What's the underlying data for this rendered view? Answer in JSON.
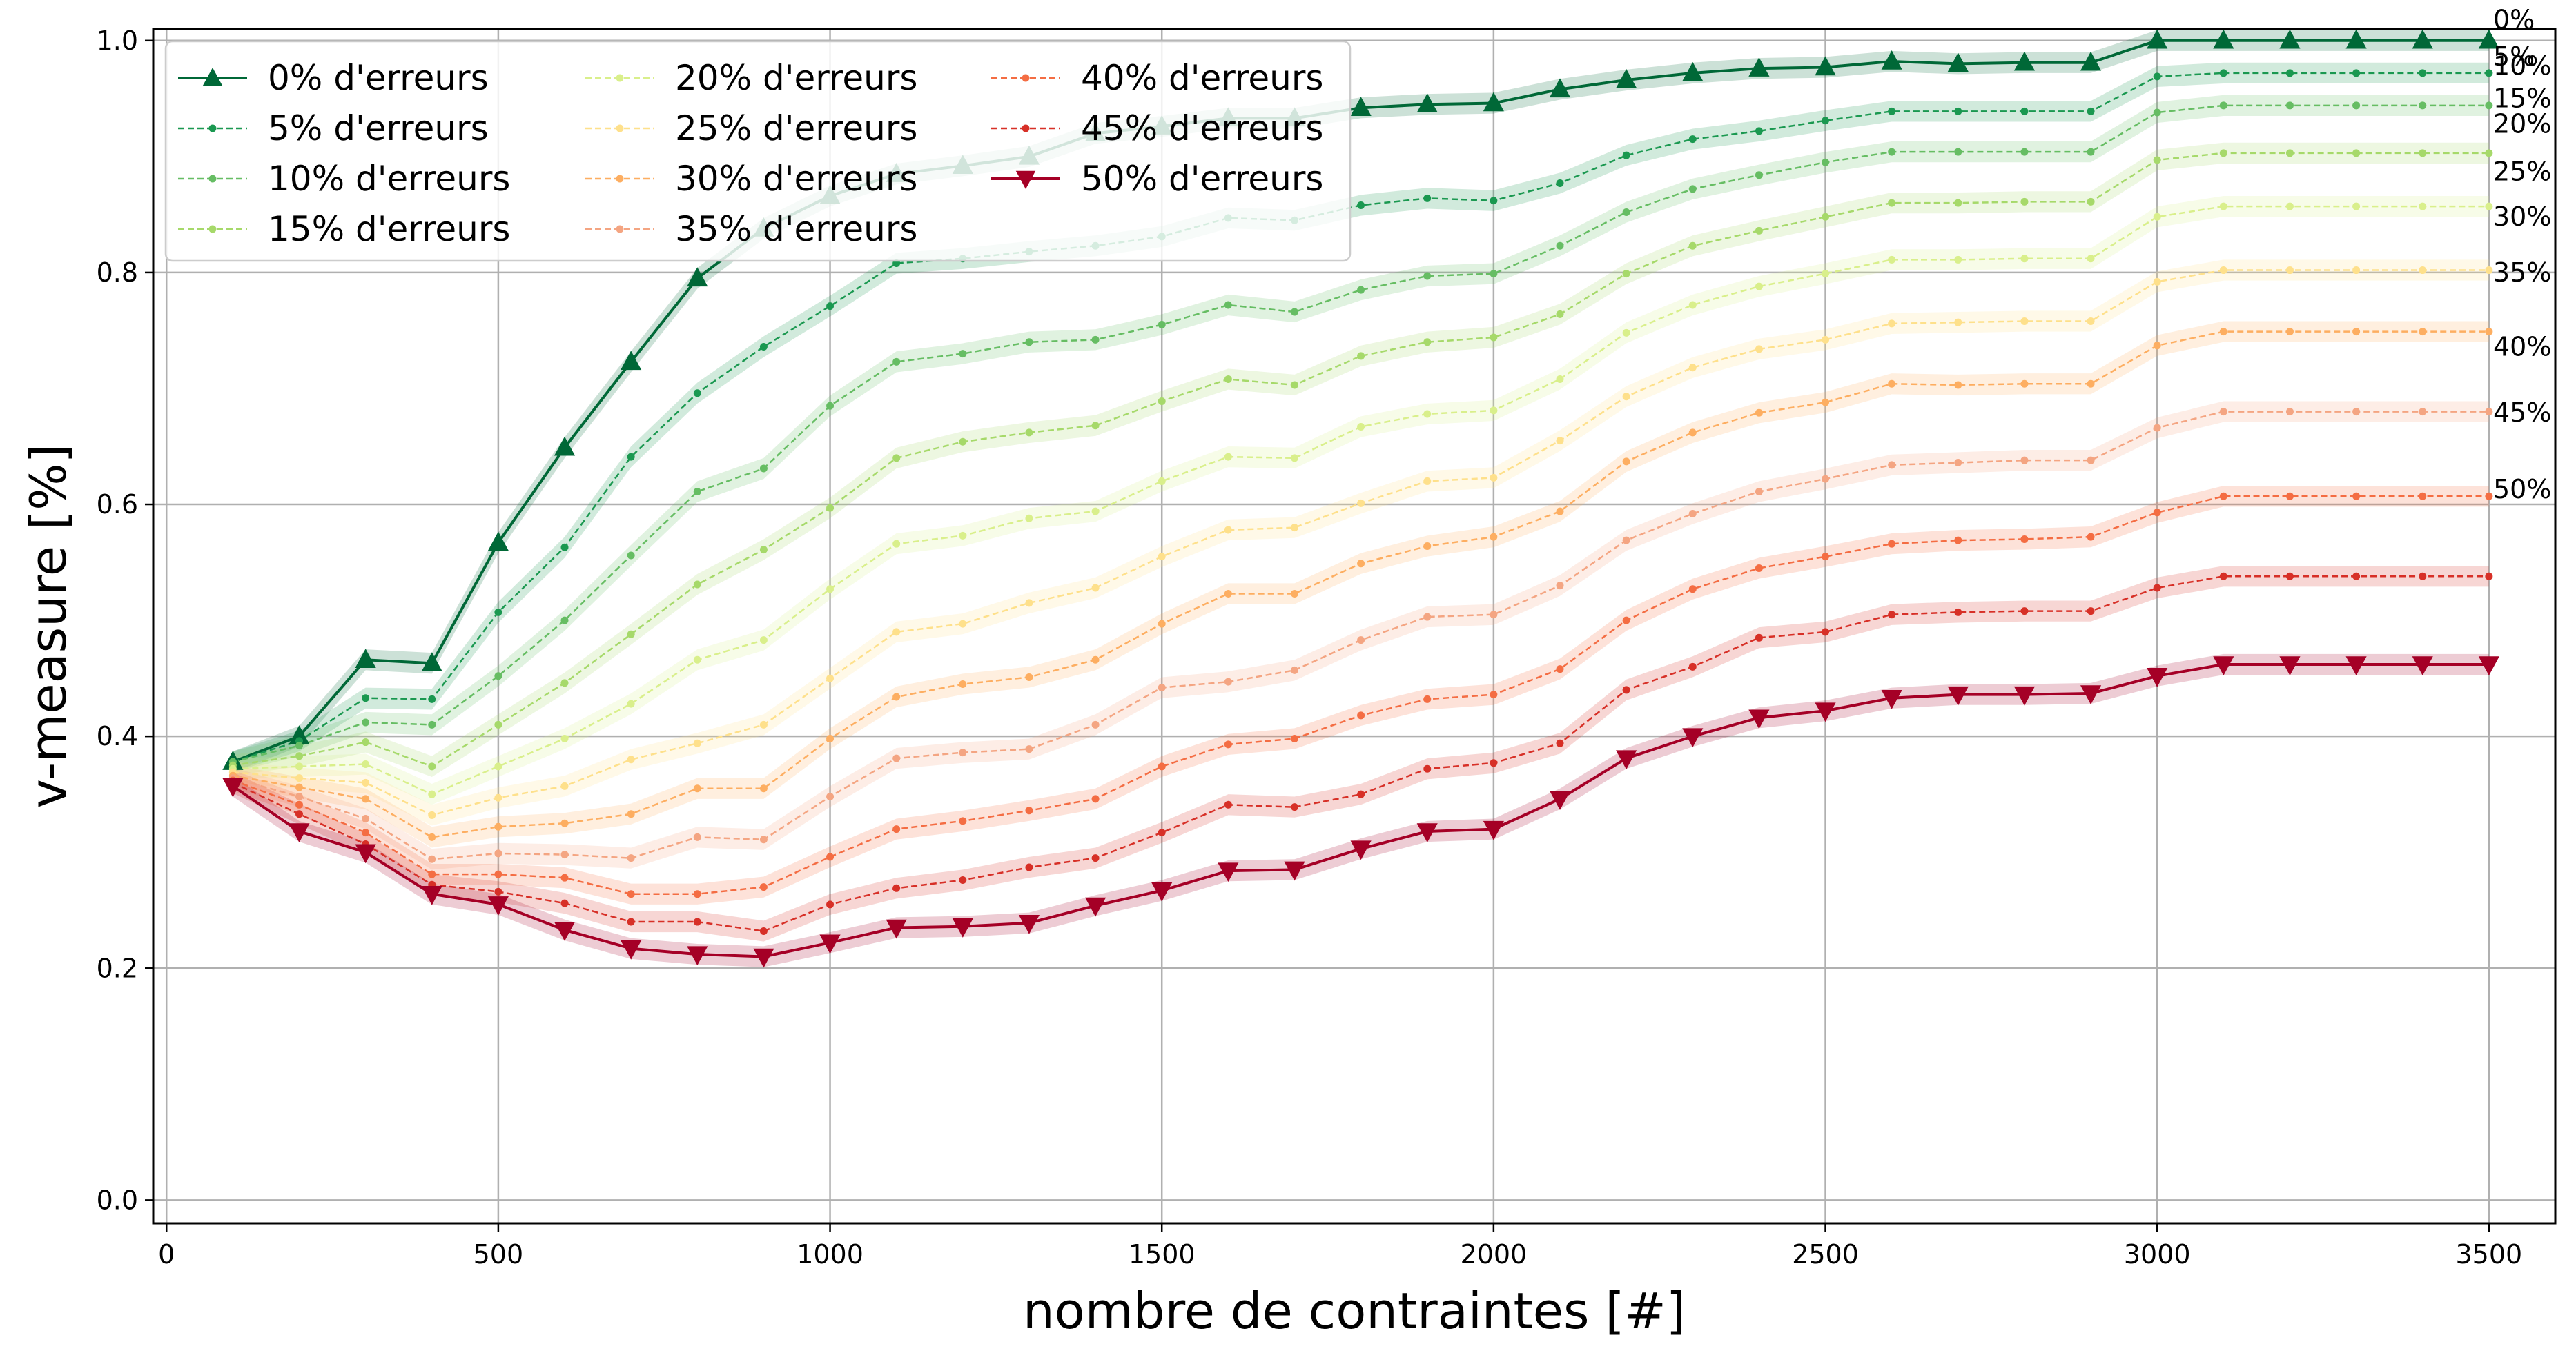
{
  "chart_data": {
    "type": "line",
    "title": "",
    "xlabel": "nombre de contraintes [#]",
    "ylabel": "v-measure [%]",
    "xlim": [
      -20,
      3600
    ],
    "ylim": [
      -0.02,
      1.01
    ],
    "xticks": [
      0,
      500,
      1000,
      1500,
      2000,
      2500,
      3000,
      3500
    ],
    "yticks": [
      0.0,
      0.2,
      0.4,
      0.6,
      0.8,
      1.0
    ],
    "xtick_labels": [
      "0",
      "500",
      "1000",
      "1500",
      "2000",
      "2500",
      "3000",
      "3500"
    ],
    "ytick_labels": [
      "0.0",
      "0.2",
      "0.4",
      "0.6",
      "0.8",
      "1.0"
    ],
    "grid": true,
    "legend_position": "top-left",
    "legend_columns": 3,
    "band": "shaded error band around each series",
    "x": [
      100,
      200,
      300,
      400,
      500,
      600,
      700,
      800,
      900,
      1000,
      1100,
      1200,
      1300,
      1400,
      1500,
      1600,
      1700,
      1800,
      1900,
      2000,
      2100,
      2200,
      2300,
      2400,
      2500,
      2600,
      2700,
      2800,
      2900,
      3000,
      3100,
      3200,
      3300,
      3400,
      3500
    ],
    "series": [
      {
        "name": "0% d'erreurs",
        "end_label": "0%",
        "color": "#006837",
        "marker": "triangle-up",
        "style": "solid",
        "values": [
          0.378,
          0.4,
          0.466,
          0.463,
          0.567,
          0.649,
          0.723,
          0.795,
          0.838,
          0.866,
          0.885,
          0.892,
          0.9,
          0.92,
          0.926,
          0.933,
          0.933,
          0.942,
          0.945,
          0.946,
          0.958,
          0.966,
          0.972,
          0.976,
          0.977,
          0.982,
          0.98,
          0.981,
          0.981,
          1.0,
          1.0,
          1.0,
          1.0,
          1.0,
          1.0
        ]
      },
      {
        "name": "5% d'erreurs",
        "end_label": "5%",
        "color": "#1a9850",
        "marker": "dot",
        "style": "dashed",
        "values": [
          0.378,
          0.396,
          0.433,
          0.432,
          0.507,
          0.563,
          0.641,
          0.696,
          0.736,
          0.771,
          0.808,
          0.812,
          0.818,
          0.823,
          0.831,
          0.847,
          0.845,
          0.858,
          0.864,
          0.862,
          0.877,
          0.901,
          0.915,
          0.922,
          0.931,
          0.939,
          0.939,
          0.939,
          0.939,
          0.969,
          0.972,
          0.972,
          0.972,
          0.972,
          0.972
        ]
      },
      {
        "name": "10% d'erreurs",
        "end_label": "10%",
        "color": "#66bd63",
        "marker": "dot",
        "style": "dashed",
        "values": [
          0.378,
          0.392,
          0.412,
          0.41,
          0.452,
          0.5,
          0.556,
          0.611,
          0.631,
          0.685,
          0.723,
          0.73,
          0.74,
          0.742,
          0.755,
          0.772,
          0.766,
          0.785,
          0.797,
          0.799,
          0.823,
          0.852,
          0.872,
          0.884,
          0.895,
          0.904,
          0.904,
          0.904,
          0.904,
          0.938,
          0.944,
          0.944,
          0.944,
          0.944,
          0.944
        ]
      },
      {
        "name": "15% d'erreurs",
        "end_label": "15%",
        "color": "#a6d96a",
        "marker": "dot",
        "style": "dashed",
        "values": [
          0.375,
          0.383,
          0.395,
          0.374,
          0.41,
          0.446,
          0.488,
          0.531,
          0.561,
          0.597,
          0.64,
          0.654,
          0.662,
          0.668,
          0.689,
          0.708,
          0.703,
          0.728,
          0.74,
          0.744,
          0.764,
          0.799,
          0.823,
          0.836,
          0.848,
          0.86,
          0.86,
          0.861,
          0.861,
          0.897,
          0.903,
          0.903,
          0.903,
          0.903,
          0.903
        ]
      },
      {
        "name": "20% d'erreurs",
        "end_label": "20%",
        "color": "#d9ef8b",
        "marker": "dot",
        "style": "dashed",
        "values": [
          0.372,
          0.374,
          0.376,
          0.35,
          0.374,
          0.398,
          0.428,
          0.466,
          0.483,
          0.527,
          0.566,
          0.573,
          0.588,
          0.594,
          0.62,
          0.641,
          0.64,
          0.667,
          0.678,
          0.681,
          0.708,
          0.748,
          0.772,
          0.788,
          0.799,
          0.811,
          0.811,
          0.812,
          0.812,
          0.848,
          0.857,
          0.857,
          0.857,
          0.857,
          0.857
        ]
      },
      {
        "name": "25% d'erreurs",
        "end_label": "25%",
        "color": "#fee08b",
        "marker": "dot",
        "style": "dashed",
        "values": [
          0.369,
          0.364,
          0.36,
          0.332,
          0.347,
          0.357,
          0.38,
          0.394,
          0.41,
          0.45,
          0.49,
          0.497,
          0.515,
          0.528,
          0.555,
          0.578,
          0.58,
          0.601,
          0.62,
          0.623,
          0.655,
          0.693,
          0.718,
          0.734,
          0.742,
          0.756,
          0.757,
          0.758,
          0.758,
          0.792,
          0.802,
          0.802,
          0.802,
          0.802,
          0.802
        ]
      },
      {
        "name": "30% d'erreurs",
        "end_label": "30%",
        "color": "#fdae61",
        "marker": "dot",
        "style": "dashed",
        "values": [
          0.366,
          0.356,
          0.346,
          0.313,
          0.322,
          0.325,
          0.333,
          0.355,
          0.355,
          0.398,
          0.434,
          0.445,
          0.451,
          0.466,
          0.497,
          0.523,
          0.523,
          0.549,
          0.564,
          0.572,
          0.594,
          0.637,
          0.662,
          0.679,
          0.688,
          0.704,
          0.703,
          0.704,
          0.704,
          0.737,
          0.749,
          0.749,
          0.749,
          0.749,
          0.749
        ]
      },
      {
        "name": "35% d'erreurs",
        "end_label": "35%",
        "color": "#f4a582",
        "marker": "dot",
        "style": "dashed",
        "values": [
          0.364,
          0.348,
          0.329,
          0.294,
          0.299,
          0.298,
          0.295,
          0.313,
          0.311,
          0.348,
          0.381,
          0.386,
          0.389,
          0.41,
          0.442,
          0.447,
          0.457,
          0.483,
          0.503,
          0.505,
          0.53,
          0.569,
          0.592,
          0.611,
          0.622,
          0.634,
          0.636,
          0.638,
          0.638,
          0.666,
          0.68,
          0.68,
          0.68,
          0.68,
          0.68
        ]
      },
      {
        "name": "40% d'erreurs",
        "end_label": "40%",
        "color": "#f46d43",
        "marker": "dot",
        "style": "dashed",
        "values": [
          0.362,
          0.341,
          0.317,
          0.281,
          0.281,
          0.278,
          0.264,
          0.264,
          0.27,
          0.296,
          0.32,
          0.327,
          0.336,
          0.346,
          0.374,
          0.393,
          0.398,
          0.418,
          0.432,
          0.436,
          0.458,
          0.5,
          0.527,
          0.545,
          0.555,
          0.566,
          0.569,
          0.57,
          0.572,
          0.593,
          0.607,
          0.607,
          0.607,
          0.607,
          0.607
        ]
      },
      {
        "name": "45% d'erreurs",
        "end_label": "45%",
        "color": "#d73027",
        "marker": "dot",
        "style": "dashed",
        "values": [
          0.36,
          0.333,
          0.307,
          0.272,
          0.266,
          0.256,
          0.24,
          0.24,
          0.232,
          0.255,
          0.269,
          0.276,
          0.287,
          0.295,
          0.317,
          0.341,
          0.339,
          0.35,
          0.372,
          0.377,
          0.394,
          0.44,
          0.46,
          0.485,
          0.49,
          0.505,
          0.507,
          0.508,
          0.508,
          0.528,
          0.538,
          0.538,
          0.538,
          0.538,
          0.538
        ]
      },
      {
        "name": "50% d'erreurs",
        "end_label": "50%",
        "color": "#a50026",
        "marker": "triangle-down",
        "style": "solid",
        "values": [
          0.357,
          0.318,
          0.3,
          0.264,
          0.255,
          0.233,
          0.217,
          0.212,
          0.21,
          0.222,
          0.235,
          0.236,
          0.239,
          0.254,
          0.267,
          0.284,
          0.285,
          0.303,
          0.318,
          0.32,
          0.346,
          0.381,
          0.4,
          0.416,
          0.422,
          0.433,
          0.436,
          0.436,
          0.437,
          0.452,
          0.462,
          0.462,
          0.462,
          0.462,
          0.462
        ]
      }
    ]
  }
}
